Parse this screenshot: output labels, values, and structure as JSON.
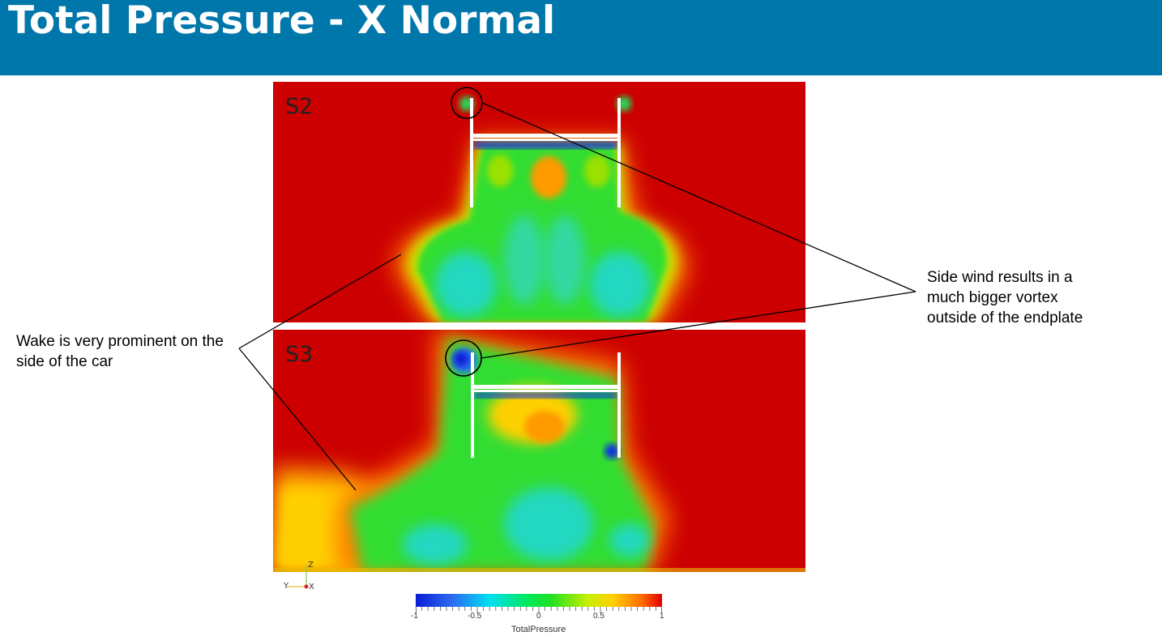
{
  "header": {
    "title": "Total Pressure - X Normal"
  },
  "panels": [
    {
      "label": "S2"
    },
    {
      "label": "S3"
    }
  ],
  "annotations": {
    "left": "Wake is very prominent on the side of the car",
    "right": "Side wind results in a much bigger vortex outside of the endplate"
  },
  "axes_triad": {
    "z": "Z",
    "y": "Y",
    "x": "X"
  },
  "colorbar": {
    "title": "TotalPressure",
    "tick_labels": [
      "-1",
      "-0.5",
      "0",
      "0.5",
      "1"
    ],
    "range": [
      -1,
      1
    ],
    "colors": [
      "#0a1ed6",
      "#00e0f0",
      "#22e022",
      "#ffd000",
      "#e00000"
    ]
  },
  "colors": {
    "header": "#0077aa",
    "field_background": "#cc0000"
  }
}
